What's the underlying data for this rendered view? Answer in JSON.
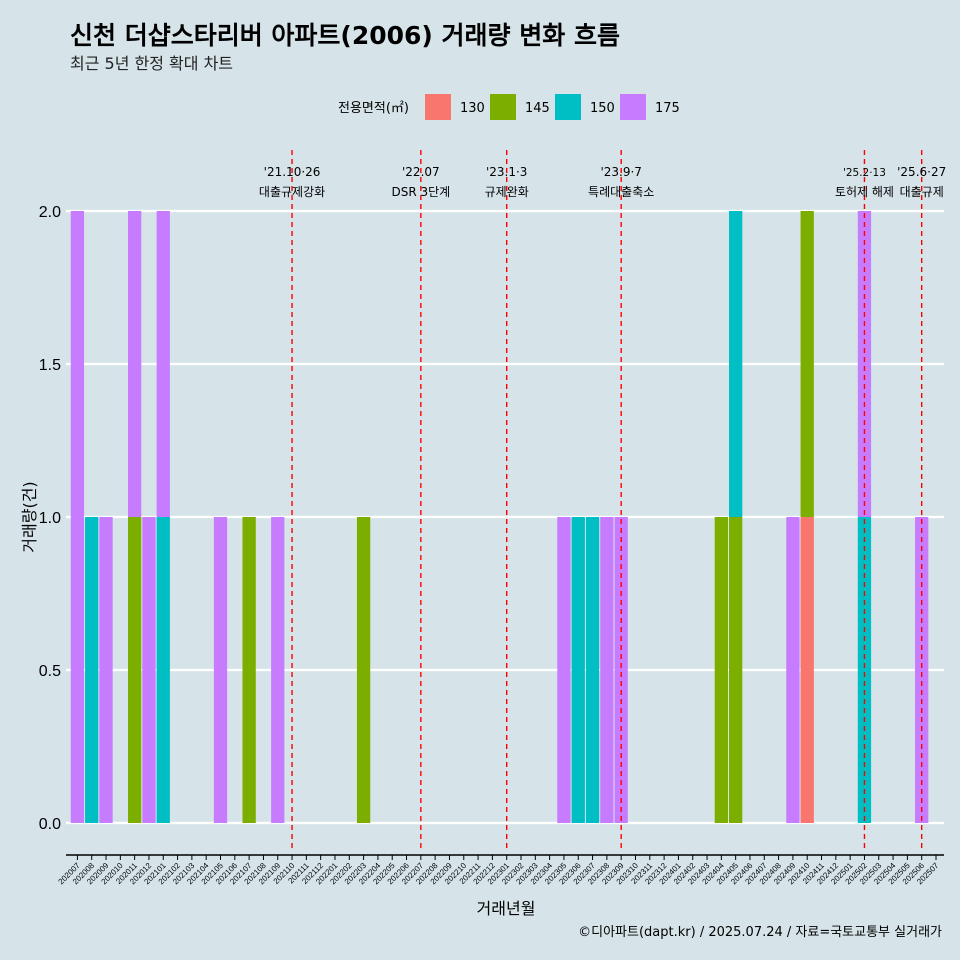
{
  "chart_data": {
    "type": "bar",
    "title": "신천 더샵스타리버 아파트(2006) 거래량 변화 흐름",
    "subtitle": "최근 5년 한정 확대 차트",
    "xlabel": "거래년월",
    "ylabel": "거래량(건)",
    "ylim": [
      0,
      2
    ],
    "yticks": [
      "0.0",
      "0.5",
      "1.0",
      "1.5",
      "2.0"
    ],
    "grid": "horizontal",
    "legend": {
      "title": "전용면적(㎡)",
      "position": "top",
      "items": [
        {
          "label": "130",
          "color": "#F8766D"
        },
        {
          "label": "145",
          "color": "#7CAE00"
        },
        {
          "label": "150",
          "color": "#00BFC4"
        },
        {
          "label": "175",
          "color": "#C77CFF"
        }
      ]
    },
    "categories": [
      "202007",
      "202008",
      "202009",
      "202010",
      "202011",
      "202012",
      "202101",
      "202102",
      "202103",
      "202104",
      "202105",
      "202106",
      "202107",
      "202108",
      "202109",
      "202110",
      "202111",
      "202112",
      "202201",
      "202202",
      "202203",
      "202204",
      "202205",
      "202206",
      "202207",
      "202208",
      "202209",
      "202210",
      "202211",
      "202212",
      "202301",
      "202302",
      "202303",
      "202304",
      "202305",
      "202306",
      "202307",
      "202308",
      "202309",
      "202310",
      "202311",
      "202312",
      "202401",
      "202402",
      "202403",
      "202404",
      "202405",
      "202406",
      "202407",
      "202408",
      "202409",
      "202410",
      "202411",
      "202412",
      "202501",
      "202502",
      "202503",
      "202504",
      "202505",
      "202506",
      "202507"
    ],
    "series": [
      {
        "name": "130",
        "values": [
          0,
          0,
          0,
          0,
          0,
          0,
          0,
          0,
          0,
          0,
          0,
          0,
          0,
          0,
          0,
          0,
          0,
          0,
          0,
          0,
          0,
          0,
          0,
          0,
          0,
          0,
          0,
          0,
          0,
          0,
          0,
          0,
          0,
          0,
          0,
          0,
          0,
          0,
          0,
          0,
          0,
          0,
          0,
          0,
          0,
          0,
          0,
          0,
          0,
          0,
          0,
          1,
          0,
          0,
          0,
          0,
          0,
          0,
          0,
          0,
          0
        ]
      },
      {
        "name": "145",
        "values": [
          0,
          0,
          0,
          0,
          1,
          0,
          0,
          0,
          0,
          0,
          0,
          0,
          1,
          0,
          0,
          0,
          0,
          0,
          0,
          0,
          1,
          0,
          0,
          0,
          0,
          0,
          0,
          0,
          0,
          0,
          0,
          0,
          0,
          0,
          0,
          0,
          0,
          0,
          0,
          0,
          0,
          0,
          0,
          0,
          0,
          1,
          1,
          0,
          0,
          0,
          0,
          1,
          0,
          0,
          0,
          0,
          0,
          0,
          0,
          0,
          0
        ]
      },
      {
        "name": "150",
        "values": [
          0,
          1,
          0,
          0,
          0,
          0,
          1,
          0,
          0,
          0,
          0,
          0,
          0,
          0,
          0,
          0,
          0,
          0,
          0,
          0,
          0,
          0,
          0,
          0,
          0,
          0,
          0,
          0,
          0,
          0,
          0,
          0,
          0,
          0,
          0,
          1,
          1,
          0,
          0,
          0,
          0,
          0,
          0,
          0,
          0,
          0,
          1,
          0,
          0,
          0,
          0,
          0,
          0,
          0,
          0,
          1,
          0,
          0,
          0,
          0,
          0
        ]
      },
      {
        "name": "175",
        "values": [
          2,
          0,
          1,
          0,
          1,
          1,
          1,
          0,
          0,
          0,
          1,
          0,
          0,
          0,
          1,
          0,
          0,
          0,
          0,
          0,
          0,
          0,
          0,
          0,
          0,
          0,
          0,
          0,
          0,
          0,
          0,
          0,
          0,
          0,
          1,
          0,
          0,
          1,
          1,
          0,
          0,
          0,
          0,
          0,
          0,
          0,
          0,
          0,
          0,
          0,
          1,
          0,
          0,
          0,
          0,
          1,
          0,
          0,
          0,
          1,
          0
        ]
      }
    ],
    "annotations": [
      {
        "date": "202110",
        "label": "'21.10·26",
        "text": "대출규제강화"
      },
      {
        "date": "202207",
        "label": "'22.07",
        "text": "DSR 3단계"
      },
      {
        "date": "202301",
        "label": "'23.1·3",
        "text": "규제완화"
      },
      {
        "date": "202309",
        "label": "'23.9·7",
        "text": "특례대출축소"
      },
      {
        "date": "202502",
        "label": "'25.2·13",
        "text": "토허제 해제"
      },
      {
        "date": "202506",
        "label": "'25.6·27",
        "text": "대출규제"
      }
    ],
    "caption": "©디아파트(dapt.kr) / 2025.07.24 / 자료=국토교통부 실거래가"
  }
}
